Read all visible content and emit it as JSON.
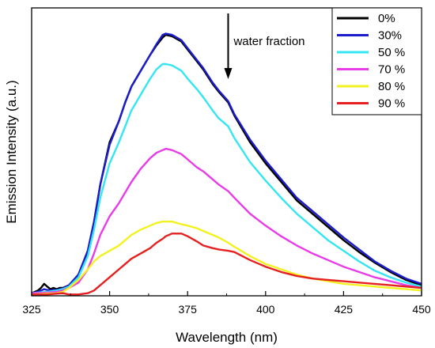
{
  "chart_data": {
    "type": "line",
    "title": "",
    "xlabel": "Wavelength (nm)",
    "ylabel": "Emission Intensity (a.u.)",
    "xlim": [
      325,
      450
    ],
    "ylim": [
      0,
      1.0
    ],
    "xticks": [
      "325",
      "350",
      "375",
      "400",
      "425",
      "450"
    ],
    "yticks_labels": "none",
    "grid": false,
    "legend_position": "top-right",
    "annotation": {
      "text": "water fraction",
      "arrow": "down",
      "x": 388
    },
    "series": [
      {
        "name": "0%",
        "color": "#000000",
        "x": [
          325,
          327,
          328,
          329,
          330,
          331,
          332,
          333,
          334,
          335,
          337,
          340,
          343,
          345,
          347,
          350,
          353,
          355,
          357,
          360,
          363,
          365,
          367,
          368,
          370,
          373,
          375,
          378,
          380,
          383,
          385,
          388,
          390,
          395,
          400,
          405,
          410,
          415,
          420,
          425,
          430,
          435,
          440,
          445,
          450
        ],
        "y": [
          0.01,
          0.02,
          0.03,
          0.045,
          0.035,
          0.025,
          0.03,
          0.025,
          0.03,
          0.03,
          0.04,
          0.08,
          0.17,
          0.28,
          0.42,
          0.58,
          0.66,
          0.73,
          0.79,
          0.85,
          0.91,
          0.945,
          0.975,
          0.985,
          0.98,
          0.96,
          0.93,
          0.885,
          0.855,
          0.8,
          0.77,
          0.73,
          0.68,
          0.58,
          0.5,
          0.43,
          0.36,
          0.31,
          0.26,
          0.21,
          0.165,
          0.125,
          0.09,
          0.06,
          0.04
        ]
      },
      {
        "name": "30%",
        "color": "#1c1ccc",
        "x": [
          325,
          327,
          328,
          329,
          330,
          331,
          332,
          333,
          334,
          335,
          337,
          340,
          343,
          345,
          347,
          350,
          353,
          355,
          357,
          360,
          363,
          365,
          367,
          368,
          370,
          373,
          375,
          378,
          380,
          383,
          385,
          388,
          390,
          395,
          400,
          405,
          410,
          415,
          420,
          425,
          430,
          435,
          440,
          445,
          450
        ],
        "y": [
          0.01,
          0.015,
          0.02,
          0.025,
          0.022,
          0.02,
          0.022,
          0.022,
          0.025,
          0.028,
          0.04,
          0.08,
          0.17,
          0.28,
          0.42,
          0.57,
          0.66,
          0.73,
          0.79,
          0.85,
          0.91,
          0.95,
          0.985,
          0.99,
          0.985,
          0.965,
          0.935,
          0.89,
          0.86,
          0.805,
          0.775,
          0.735,
          0.685,
          0.59,
          0.51,
          0.44,
          0.37,
          0.32,
          0.27,
          0.22,
          0.175,
          0.13,
          0.095,
          0.065,
          0.045
        ]
      },
      {
        "name": "50 %",
        "color": "#33e6f2",
        "x": [
          325,
          330,
          333,
          335,
          337,
          340,
          343,
          345,
          347,
          350,
          353,
          355,
          357,
          360,
          363,
          365,
          367,
          368,
          370,
          373,
          375,
          378,
          380,
          383,
          385,
          388,
          390,
          395,
          400,
          405,
          410,
          415,
          420,
          425,
          430,
          435,
          440,
          445,
          450
        ],
        "y": [
          0.01,
          0.015,
          0.02,
          0.025,
          0.035,
          0.07,
          0.15,
          0.25,
          0.37,
          0.5,
          0.58,
          0.64,
          0.7,
          0.76,
          0.82,
          0.855,
          0.875,
          0.875,
          0.87,
          0.85,
          0.82,
          0.78,
          0.75,
          0.7,
          0.67,
          0.64,
          0.595,
          0.505,
          0.435,
          0.37,
          0.31,
          0.26,
          0.21,
          0.17,
          0.13,
          0.095,
          0.07,
          0.05,
          0.035
        ]
      },
      {
        "name": "70 %",
        "color": "#e83ce8",
        "x": [
          325,
          330,
          333,
          335,
          337,
          340,
          343,
          345,
          347,
          350,
          353,
          355,
          357,
          360,
          363,
          365,
          367,
          368,
          370,
          373,
          375,
          378,
          380,
          383,
          385,
          388,
          390,
          395,
          400,
          405,
          410,
          415,
          420,
          425,
          430,
          435,
          440,
          445,
          450
        ],
        "y": [
          0.01,
          0.012,
          0.015,
          0.02,
          0.03,
          0.05,
          0.1,
          0.16,
          0.23,
          0.3,
          0.35,
          0.39,
          0.43,
          0.48,
          0.52,
          0.54,
          0.55,
          0.555,
          0.55,
          0.535,
          0.515,
          0.485,
          0.47,
          0.44,
          0.42,
          0.395,
          0.37,
          0.31,
          0.265,
          0.225,
          0.19,
          0.16,
          0.135,
          0.11,
          0.09,
          0.07,
          0.055,
          0.04,
          0.03
        ]
      },
      {
        "name": "80 %",
        "color": "#f2f221",
        "x": [
          325,
          330,
          333,
          335,
          337,
          340,
          343,
          345,
          347,
          350,
          353,
          355,
          357,
          360,
          363,
          365,
          367,
          368,
          370,
          373,
          375,
          378,
          380,
          383,
          385,
          388,
          390,
          395,
          400,
          405,
          410,
          415,
          420,
          425,
          430,
          435,
          440,
          445,
          450
        ],
        "y": [
          0.005,
          0.008,
          0.01,
          0.015,
          0.03,
          0.06,
          0.1,
          0.13,
          0.15,
          0.17,
          0.19,
          0.21,
          0.23,
          0.25,
          0.265,
          0.275,
          0.28,
          0.28,
          0.28,
          0.27,
          0.265,
          0.255,
          0.245,
          0.23,
          0.22,
          0.2,
          0.185,
          0.15,
          0.12,
          0.1,
          0.08,
          0.065,
          0.055,
          0.045,
          0.04,
          0.035,
          0.03,
          0.025,
          0.02
        ]
      },
      {
        "name": "90 %",
        "color": "#e62020",
        "x": [
          325,
          330,
          333,
          335,
          337,
          340,
          343,
          345,
          347,
          350,
          353,
          355,
          357,
          360,
          363,
          365,
          367,
          368,
          370,
          373,
          375,
          378,
          380,
          383,
          385,
          388,
          390,
          395,
          400,
          405,
          410,
          415,
          420,
          425,
          430,
          435,
          440,
          445,
          450
        ],
        "y": [
          0.005,
          0.005,
          0.008,
          0.01,
          0.005,
          0.005,
          0.01,
          0.02,
          0.04,
          0.07,
          0.1,
          0.12,
          0.14,
          0.16,
          0.18,
          0.2,
          0.215,
          0.225,
          0.235,
          0.235,
          0.225,
          0.205,
          0.19,
          0.18,
          0.175,
          0.17,
          0.165,
          0.135,
          0.11,
          0.09,
          0.075,
          0.065,
          0.06,
          0.055,
          0.05,
          0.045,
          0.04,
          0.035,
          0.03
        ]
      }
    ]
  }
}
